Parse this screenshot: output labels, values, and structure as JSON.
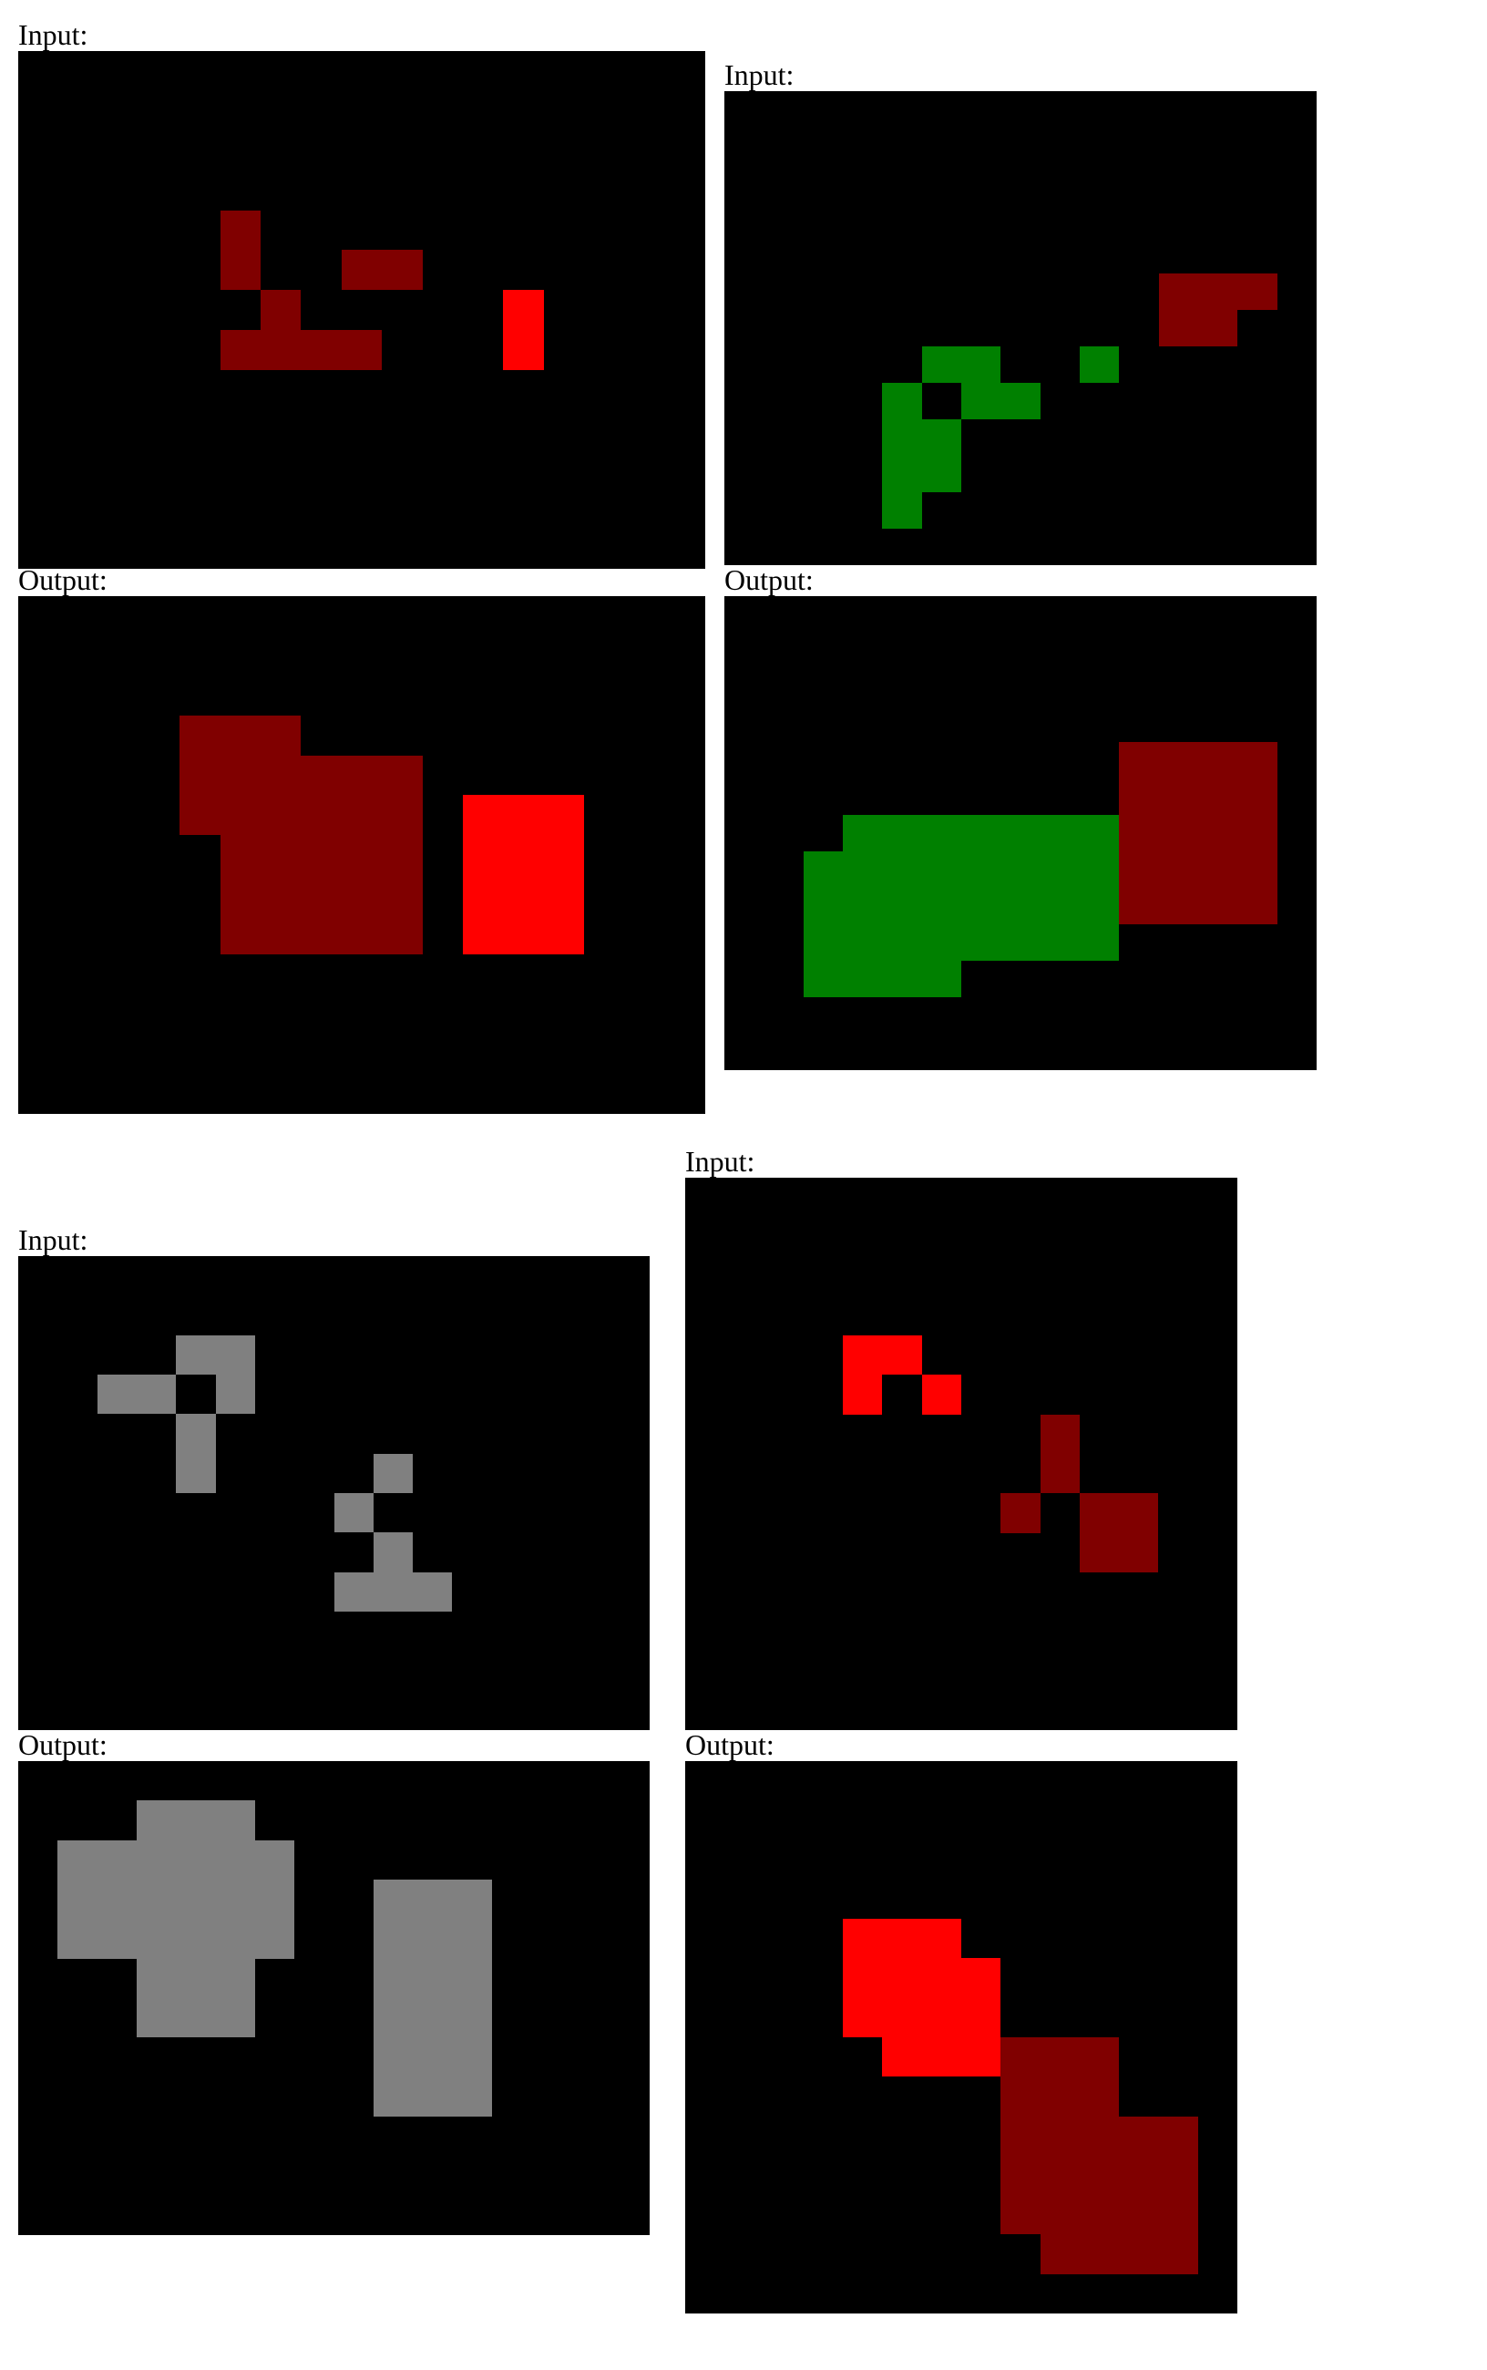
{
  "labels": {
    "input": "Input:",
    "output": "Output:"
  },
  "palette": {
    "0": "#000000",
    "1": "#800000",
    "2": "#ff0000",
    "3": "#008000",
    "4": "#808080"
  },
  "examples": [
    {
      "input": {
        "rows": [
          "00000000000000000",
          "00000000000000000",
          "00000000000000000",
          "00000000000000000",
          "00000100000000000",
          "00000100110000000",
          "00000010000020000",
          "00000111100020000",
          "00000000000000000",
          "00000000000000000",
          "00000000000000000",
          "00000000000000000",
          "00000000000000000"
        ]
      },
      "output": {
        "rows": [
          "00000000000000000",
          "00000000000000000",
          "00000000000000000",
          "00001110000000000",
          "00001111110000000",
          "00001111110222000",
          "00000111110222000",
          "00000111110222000",
          "00000111110222000",
          "00000000000000000",
          "00000000000000000",
          "00000000000000000",
          "00000000000000000"
        ]
      }
    },
    {
      "input": {
        "rows": [
          "000000000000000",
          "000000000000000",
          "000000000000000",
          "000000000000000",
          "000000000000000",
          "000000000001110",
          "000000000001100",
          "000003300300000",
          "000030330000000",
          "000033000000000",
          "000033000000000",
          "000030000000000",
          "000000000000000"
        ]
      },
      "output": {
        "rows": [
          "000000000000000",
          "000000000000000",
          "000000000000000",
          "000000000000000",
          "000000000011110",
          "000000000011110",
          "000333333311110",
          "003333333311110",
          "003333333311110",
          "003333333300000",
          "003333000000000",
          "000000000000000",
          "000000000000000"
        ]
      }
    },
    {
      "input": {
        "rows": [
          "0000000000000000",
          "0000000000000000",
          "0000440000000000",
          "0044040000000000",
          "0000400000000000",
          "0000400004000000",
          "0000000040000000",
          "0000000004000000",
          "0000000044400000",
          "0000000000000000",
          "0000000000000000",
          "0000000000000000"
        ]
      },
      "output": {
        "rows": [
          "0000000000000000",
          "0004440000000000",
          "0444444000000000",
          "0444444004440000",
          "0444444004440000",
          "0004440004440000",
          "0004440004440000",
          "0000000004440000",
          "0000000004440000",
          "0000000000000000",
          "0000000000000000",
          "0000000000000000"
        ]
      }
    },
    {
      "input": {
        "rows": [
          "00000000000000",
          "00000000000000",
          "00000000000000",
          "00000000000000",
          "00002200000000",
          "00002020000000",
          "00000000010000",
          "00000000010000",
          "00000000101100",
          "00000000001100",
          "00000000000000",
          "00000000000000",
          "00000000000000",
          "00000000000000"
        ]
      },
      "output": {
        "rows": [
          "00000000000000",
          "00000000000000",
          "00000000000000",
          "00000000000000",
          "00002220000000",
          "00002222000000",
          "00002222000000",
          "00000222111000",
          "00000000111000",
          "00000000111110",
          "00000000111110",
          "00000000111110",
          "00000000011110",
          "00000000000000"
        ]
      }
    }
  ]
}
